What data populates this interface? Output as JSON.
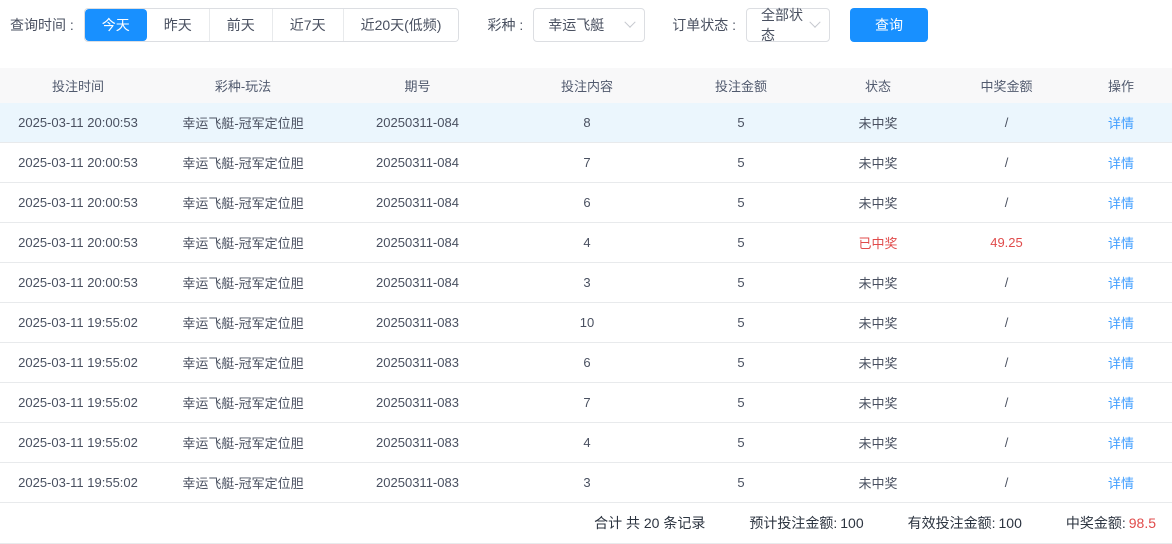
{
  "filters": {
    "time_label": "查询时间 :",
    "time_options": [
      {
        "label": "今天",
        "active": true
      },
      {
        "label": "昨天",
        "active": false
      },
      {
        "label": "前天",
        "active": false
      },
      {
        "label": "近7天",
        "active": false
      },
      {
        "label": "近20天(低频)",
        "active": false
      }
    ],
    "lottery_label": "彩种 :",
    "lottery_value": "幸运飞艇",
    "status_label": "订单状态 :",
    "status_value": "全部状态",
    "query_button_label": "查询"
  },
  "table": {
    "columns": [
      "投注时间",
      "彩种-玩法",
      "期号",
      "投注内容",
      "投注金额",
      "状态",
      "中奖金额",
      "操作"
    ],
    "action_label": "详情",
    "rows": [
      {
        "time": "2025-03-11 20:00:53",
        "game": "幸运飞艇-冠军定位胆",
        "period": "20250311-084",
        "content": "8",
        "amount": "5",
        "status": "未中奖",
        "won": false,
        "prize": "/",
        "highlight": true
      },
      {
        "time": "2025-03-11 20:00:53",
        "game": "幸运飞艇-冠军定位胆",
        "period": "20250311-084",
        "content": "7",
        "amount": "5",
        "status": "未中奖",
        "won": false,
        "prize": "/",
        "highlight": false
      },
      {
        "time": "2025-03-11 20:00:53",
        "game": "幸运飞艇-冠军定位胆",
        "period": "20250311-084",
        "content": "6",
        "amount": "5",
        "status": "未中奖",
        "won": false,
        "prize": "/",
        "highlight": false
      },
      {
        "time": "2025-03-11 20:00:53",
        "game": "幸运飞艇-冠军定位胆",
        "period": "20250311-084",
        "content": "4",
        "amount": "5",
        "status": "已中奖",
        "won": true,
        "prize": "49.25",
        "highlight": false
      },
      {
        "time": "2025-03-11 20:00:53",
        "game": "幸运飞艇-冠军定位胆",
        "period": "20250311-084",
        "content": "3",
        "amount": "5",
        "status": "未中奖",
        "won": false,
        "prize": "/",
        "highlight": false
      },
      {
        "time": "2025-03-11 19:55:02",
        "game": "幸运飞艇-冠军定位胆",
        "period": "20250311-083",
        "content": "10",
        "amount": "5",
        "status": "未中奖",
        "won": false,
        "prize": "/",
        "highlight": false
      },
      {
        "time": "2025-03-11 19:55:02",
        "game": "幸运飞艇-冠军定位胆",
        "period": "20250311-083",
        "content": "6",
        "amount": "5",
        "status": "未中奖",
        "won": false,
        "prize": "/",
        "highlight": false
      },
      {
        "time": "2025-03-11 19:55:02",
        "game": "幸运飞艇-冠军定位胆",
        "period": "20250311-083",
        "content": "7",
        "amount": "5",
        "status": "未中奖",
        "won": false,
        "prize": "/",
        "highlight": false
      },
      {
        "time": "2025-03-11 19:55:02",
        "game": "幸运飞艇-冠军定位胆",
        "period": "20250311-083",
        "content": "4",
        "amount": "5",
        "status": "未中奖",
        "won": false,
        "prize": "/",
        "highlight": false
      },
      {
        "time": "2025-03-11 19:55:02",
        "game": "幸运飞艇-冠军定位胆",
        "period": "20250311-083",
        "content": "3",
        "amount": "5",
        "status": "未中奖",
        "won": false,
        "prize": "/",
        "highlight": false
      }
    ]
  },
  "summary": {
    "total_text": "合计 共 20 条记录",
    "expected_label": "预计投注金额:",
    "expected_value": "100",
    "valid_label": "有效投注金额:",
    "valid_value": "100",
    "prize_label": "中奖金额:",
    "prize_value": "98.5"
  },
  "colors": {
    "accent": "#1890ff",
    "link": "#409eff",
    "won_red": "#e04b4b",
    "row_highlight": "#ebf6fd"
  }
}
